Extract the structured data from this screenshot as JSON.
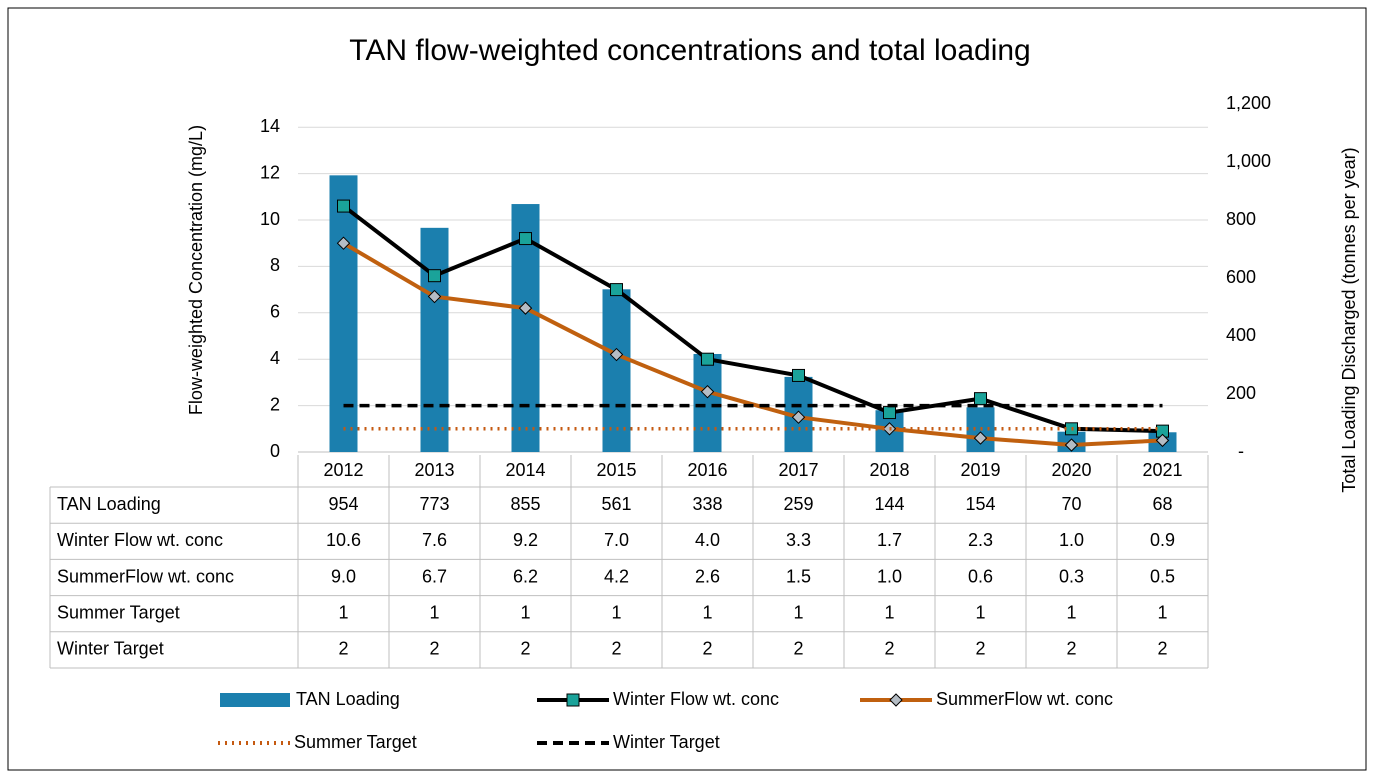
{
  "chart_data": {
    "type": "bar",
    "title": "TAN flow-weighted concentrations and total loading",
    "y_label": "Flow-weighted Concentration (mg/L)",
    "y2_label": "Total Loading Discharged (tonnes per year)",
    "categories": [
      "2012",
      "2013",
      "2014",
      "2015",
      "2016",
      "2017",
      "2018",
      "2019",
      "2020",
      "2021"
    ],
    "ylim": [
      0,
      15
    ],
    "yticks": [
      0,
      2,
      4,
      6,
      8,
      10,
      12,
      14
    ],
    "y2lim": [
      0,
      1200
    ],
    "y2ticks": [
      {
        "value": 0,
        "label": "-"
      },
      200,
      400,
      600,
      800,
      {
        "value": 1000,
        "label": "1,000"
      },
      {
        "value": 1200,
        "label": "1,200"
      }
    ],
    "grid": true,
    "data_table": true,
    "series": [
      {
        "name": "TAN Loading",
        "type": "bar",
        "axis": "y2",
        "color": "#1b7fae",
        "values": [
          954,
          773,
          855,
          561,
          338,
          259,
          144,
          154,
          70,
          68
        ]
      },
      {
        "name": "Winter Flow wt. conc",
        "type": "line",
        "line_style": "solid",
        "marker": "square",
        "marker_color": "#1aa39a",
        "color": "#000000",
        "values": [
          10.6,
          7.6,
          9.2,
          7.0,
          4.0,
          3.3,
          1.7,
          2.3,
          1.0,
          0.9
        ],
        "value_labels": [
          "10.6",
          "7.6",
          "9.2",
          "7.0",
          "4.0",
          "3.3",
          "1.7",
          "2.3",
          "1.0",
          "0.9"
        ]
      },
      {
        "name": "SummerFlow wt. conc",
        "type": "line",
        "line_style": "solid",
        "marker": "diamond",
        "marker_color": "#b4bcc4",
        "color": "#c0600f",
        "values": [
          9.0,
          6.7,
          6.2,
          4.2,
          2.6,
          1.5,
          1.0,
          0.6,
          0.3,
          0.5
        ],
        "value_labels": [
          "9.0",
          "6.7",
          "6.2",
          "4.2",
          "2.6",
          "1.5",
          "1.0",
          "0.6",
          "0.3",
          "0.5"
        ]
      },
      {
        "name": "Summer Target",
        "type": "line",
        "line_style": "dotted",
        "color": "#c55a11",
        "values": [
          1,
          1,
          1,
          1,
          1,
          1,
          1,
          1,
          1,
          1
        ]
      },
      {
        "name": "Winter Target",
        "type": "line",
        "line_style": "dashed",
        "color": "#000000",
        "values": [
          2,
          2,
          2,
          2,
          2,
          2,
          2,
          2,
          2,
          2
        ]
      }
    ]
  }
}
